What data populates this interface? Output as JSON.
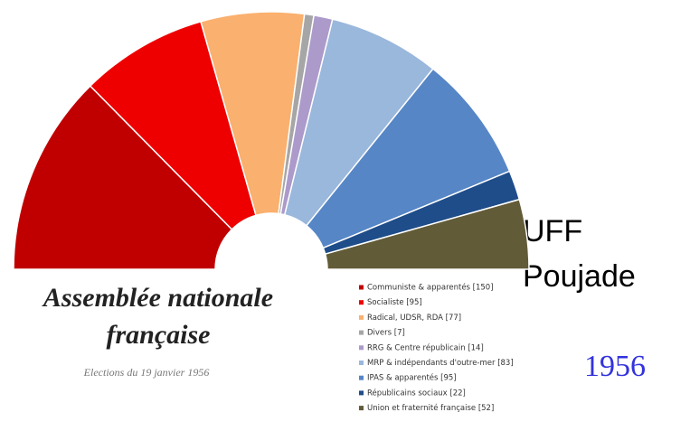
{
  "chart_data": {
    "type": "pie",
    "title": [
      "Assemblée nationale",
      "française"
    ],
    "subtitle": "Elections du 19 janvier 1956",
    "annotations": [
      "UFF",
      "Poujade",
      "1956"
    ],
    "categories": [
      "Communiste & apparentés [150]",
      "Socialiste [95]",
      "Radical, UDSR, RDA [77]",
      "Divers [7]",
      "RRG & Centre républicain [14]",
      "MRP & indépendants d'outre-mer [83]",
      "IPAS & apparentés [95]",
      "Républicains sociaux [22]",
      "Union et fraternité française [52]"
    ],
    "values": [
      150,
      95,
      77,
      7,
      14,
      83,
      95,
      22,
      52
    ],
    "colors": [
      "#c00000",
      "#ee0000",
      "#fab06e",
      "#a6a6a6",
      "#ac9acb",
      "#9ab7dc",
      "#5686c6",
      "#1f4d8a",
      "#625b38"
    ]
  }
}
